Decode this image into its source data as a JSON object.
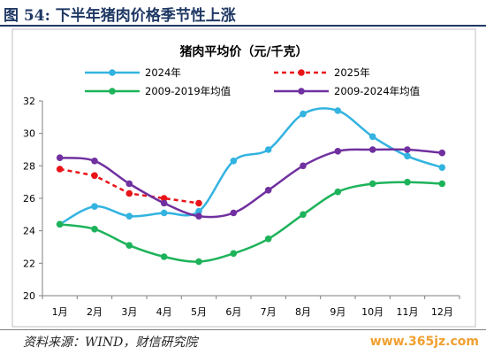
{
  "figure": {
    "title": "图 54:  下半年猪肉价格季节性上涨",
    "source": "资料来源：WIND，财信研究院",
    "watermark": "www.365jz.com"
  },
  "chart_data": {
    "type": "line",
    "title": "猪肉平均价（元/千克）",
    "categories": [
      "1月",
      "2月",
      "3月",
      "4月",
      "5月",
      "6月",
      "7月",
      "8月",
      "9月",
      "10月",
      "11月",
      "12月"
    ],
    "ylim": [
      20,
      32
    ],
    "yticks": [
      20,
      22,
      24,
      26,
      28,
      30,
      32
    ],
    "grid": false,
    "legend_position": "top",
    "series": [
      {
        "name": "2024年",
        "color": "#33b3e0",
        "dashed": false,
        "values": [
          24.4,
          25.5,
          24.9,
          25.1,
          25.2,
          28.3,
          29.0,
          31.2,
          31.4,
          29.8,
          28.6,
          27.9
        ]
      },
      {
        "name": "2025年",
        "color": "#e8141a",
        "dashed": true,
        "values": [
          27.8,
          27.4,
          26.3,
          26.0,
          25.7,
          null,
          null,
          null,
          null,
          null,
          null,
          null
        ]
      },
      {
        "name": "2009-2019年均值",
        "color": "#1db35a",
        "dashed": false,
        "values": [
          24.4,
          24.1,
          23.1,
          22.4,
          22.1,
          22.6,
          23.5,
          25.0,
          26.4,
          26.9,
          27.0,
          26.9
        ]
      },
      {
        "name": "2009-2024年均值",
        "color": "#7030a0",
        "dashed": false,
        "values": [
          28.5,
          28.3,
          26.9,
          25.7,
          24.9,
          25.1,
          26.5,
          28.0,
          28.9,
          29.0,
          29.0,
          28.8
        ]
      }
    ]
  }
}
